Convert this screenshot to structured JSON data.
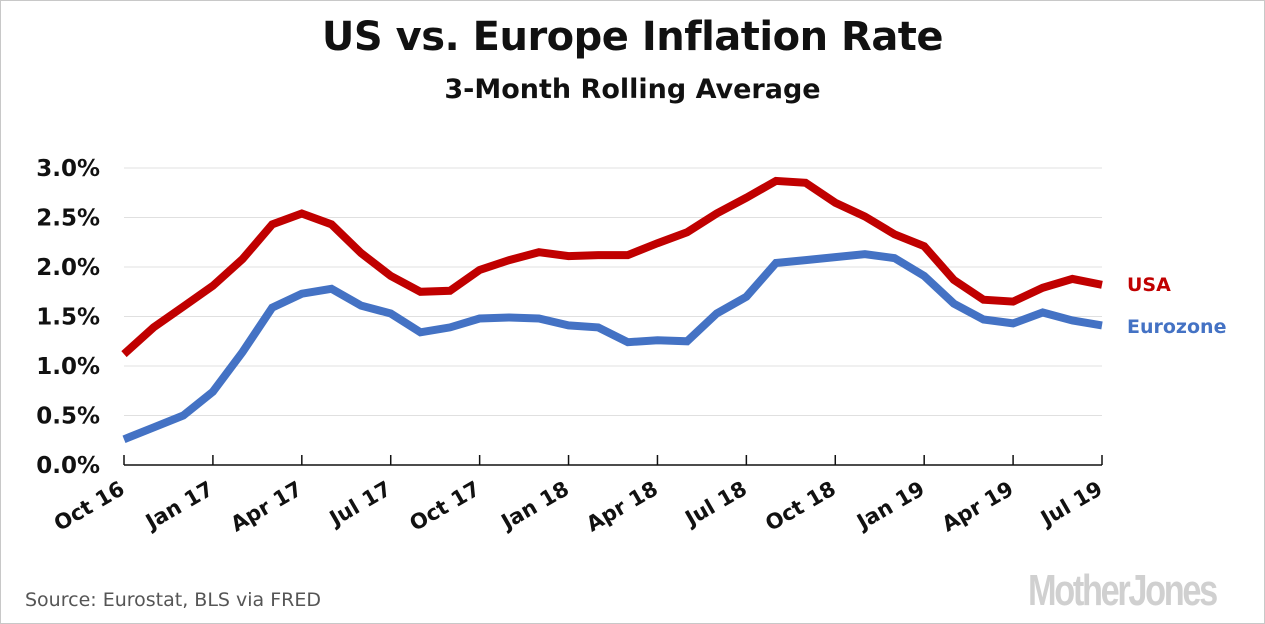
{
  "chart_data": {
    "type": "line",
    "title": "US vs. Europe Inflation Rate",
    "subtitle": "3-Month Rolling Average",
    "xlabel": "",
    "ylabel": "",
    "ylim": [
      0,
      3.0
    ],
    "yticks": [
      0.0,
      0.5,
      1.0,
      1.5,
      2.0,
      2.5,
      3.0
    ],
    "ytick_labels": [
      "0.0%",
      "0.5%",
      "1.0%",
      "1.5%",
      "2.0%",
      "2.5%",
      "3.0%"
    ],
    "x": [
      "Oct 16",
      "Nov 16",
      "Dec 16",
      "Jan 17",
      "Feb 17",
      "Mar 17",
      "Apr 17",
      "May 17",
      "Jun 17",
      "Jul 17",
      "Aug 17",
      "Sep 17",
      "Oct 17",
      "Nov 17",
      "Dec 17",
      "Jan 18",
      "Feb 18",
      "Mar 18",
      "Apr 18",
      "May 18",
      "Jun 18",
      "Jul 18",
      "Aug 18",
      "Sep 18",
      "Oct 18",
      "Nov 18",
      "Dec 18",
      "Jan 19",
      "Feb 19",
      "Mar 19",
      "Apr 19",
      "May 19",
      "Jun 19",
      "Jul 19"
    ],
    "xtick_labels": [
      "Oct 16",
      "Jan 17",
      "Apr 17",
      "Jul 17",
      "Oct 17",
      "Jan 18",
      "Apr 18",
      "Jul 18",
      "Oct 18",
      "Jan 19",
      "Apr 19",
      "Jul 19"
    ],
    "grid": true,
    "legend_placement": "right (inline labels at line ends)",
    "series": [
      {
        "name": "USA",
        "color": "#c00000",
        "values": [
          1.12,
          1.39,
          1.6,
          1.81,
          2.08,
          2.43,
          2.54,
          2.43,
          2.14,
          1.91,
          1.75,
          1.76,
          1.97,
          2.07,
          2.15,
          2.11,
          2.12,
          2.12,
          2.24,
          2.35,
          2.54,
          2.7,
          2.87,
          2.85,
          2.65,
          2.51,
          2.33,
          2.21,
          1.87,
          1.67,
          1.65,
          1.79,
          1.88,
          1.82
        ]
      },
      {
        "name": "Eurozone",
        "color": "#4472c4",
        "values": [
          0.26,
          0.38,
          0.5,
          0.74,
          1.14,
          1.59,
          1.73,
          1.78,
          1.61,
          1.53,
          1.34,
          1.39,
          1.48,
          1.49,
          1.48,
          1.41,
          1.39,
          1.24,
          1.26,
          1.25,
          1.53,
          1.7,
          2.04,
          2.07,
          2.1,
          2.13,
          2.09,
          1.91,
          1.63,
          1.47,
          1.43,
          1.54,
          1.46,
          1.41
        ]
      }
    ]
  },
  "footer": {
    "source": "Source: Eurostat, BLS via FRED",
    "logo": "MotherJones"
  },
  "colors": {
    "grid": "#e0e0e0",
    "axis": "#111111"
  }
}
